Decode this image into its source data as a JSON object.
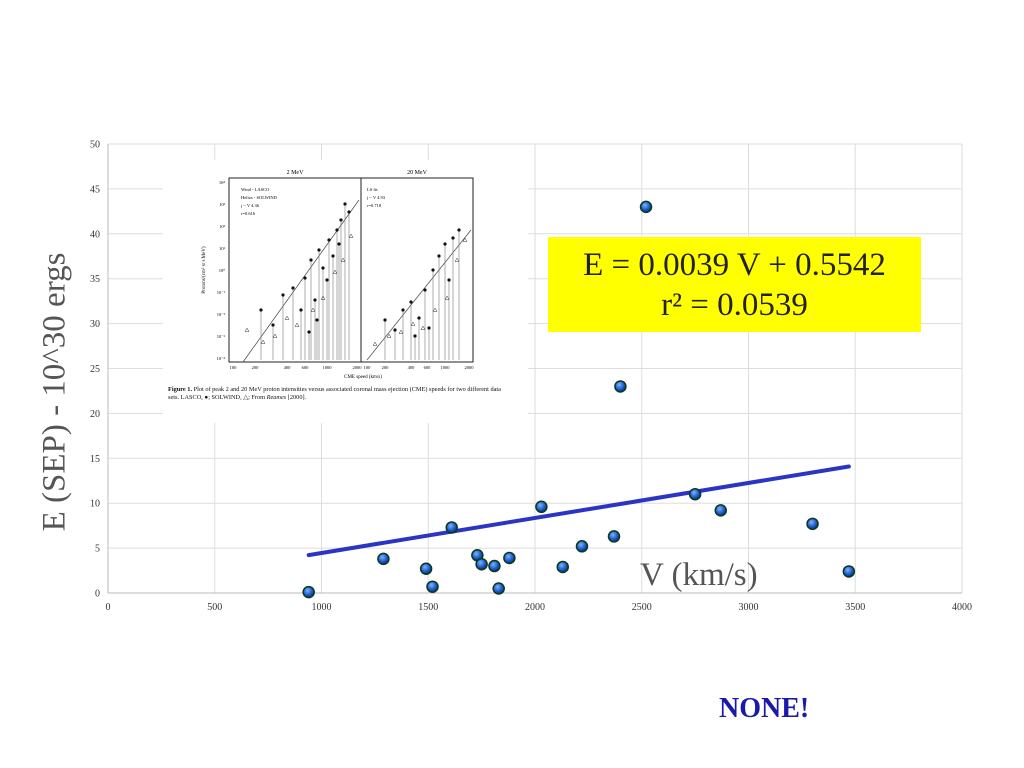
{
  "chart_data": {
    "type": "scatter",
    "xlabel": "V (km/s)",
    "ylabel": "E (SEP) - 10^30 ergs",
    "xlim": [
      0,
      4000
    ],
    "ylim": [
      0,
      50
    ],
    "x_ticks": [
      "0",
      "500",
      "1000",
      "1500",
      "2000",
      "2500",
      "3000",
      "3500",
      "4000"
    ],
    "y_ticks": [
      "0",
      "5",
      "10",
      "15",
      "20",
      "25",
      "30",
      "35",
      "40",
      "45",
      "50"
    ],
    "grid": true,
    "points": [
      {
        "x": 940,
        "y": 0.1
      },
      {
        "x": 1290,
        "y": 3.8
      },
      {
        "x": 1490,
        "y": 2.7
      },
      {
        "x": 1520,
        "y": 0.7
      },
      {
        "x": 1610,
        "y": 7.3
      },
      {
        "x": 1730,
        "y": 4.2
      },
      {
        "x": 1750,
        "y": 3.2
      },
      {
        "x": 1810,
        "y": 3.0
      },
      {
        "x": 1830,
        "y": 0.5
      },
      {
        "x": 1880,
        "y": 3.9
      },
      {
        "x": 2030,
        "y": 9.6
      },
      {
        "x": 2130,
        "y": 2.9
      },
      {
        "x": 2220,
        "y": 5.2
      },
      {
        "x": 2370,
        "y": 6.3
      },
      {
        "x": 2400,
        "y": 23.0
      },
      {
        "x": 2520,
        "y": 43.0
      },
      {
        "x": 2750,
        "y": 11.0
      },
      {
        "x": 2870,
        "y": 9.2
      },
      {
        "x": 3300,
        "y": 7.7
      },
      {
        "x": 3470,
        "y": 2.4
      }
    ],
    "trendline": {
      "slope": 0.0039,
      "intercept": 0.5542,
      "x_start": 940,
      "x_end": 3470
    },
    "colors": {
      "point_fill": "#1f5fd0",
      "point_edge": "#0a3a1a",
      "trendline": "#2b35c4",
      "grid": "#dddddd"
    }
  },
  "equation": {
    "line1": "E = 0.0039 V + 0.5542",
    "line2": "r² = 0.0539"
  },
  "verdict": "NONE!",
  "inset_figure": {
    "left_panel_title": "2 MeV",
    "right_panel_title": "20 MeV",
    "legend_left": [
      "Wind - LASCO",
      "Helios - SOLWIND",
      "j ~ V 4.36",
      "r=0.616"
    ],
    "legend_right": [
      "LS fit:",
      "j ~ V 4.93",
      "r=0.718"
    ],
    "xaxis_label": "CME speed (km/s)",
    "yaxis_label": "Protons/(cm² sr s MeV)",
    "x_ticks_left": [
      "100",
      "200",
      "400",
      "600",
      "1000",
      "2000"
    ],
    "x_ticks_right": [
      "100",
      "200",
      "400",
      "600",
      "1000",
      "2000"
    ],
    "y_ticks": [
      "10⁴",
      "10³",
      "10²",
      "10¹",
      "10⁰",
      "10⁻¹",
      "10⁻²",
      "10⁻³",
      "10⁻⁴"
    ],
    "caption_bold": "Figure 1.",
    "caption_text": " Plot of peak 2 and 20 MeV proton intensities versus associated coronal mass ejection (CME) speeds for two different data sets. LASCO, ●; SOLWIND, △; From ",
    "caption_italic": "Reames",
    "caption_end": " [2000]."
  }
}
